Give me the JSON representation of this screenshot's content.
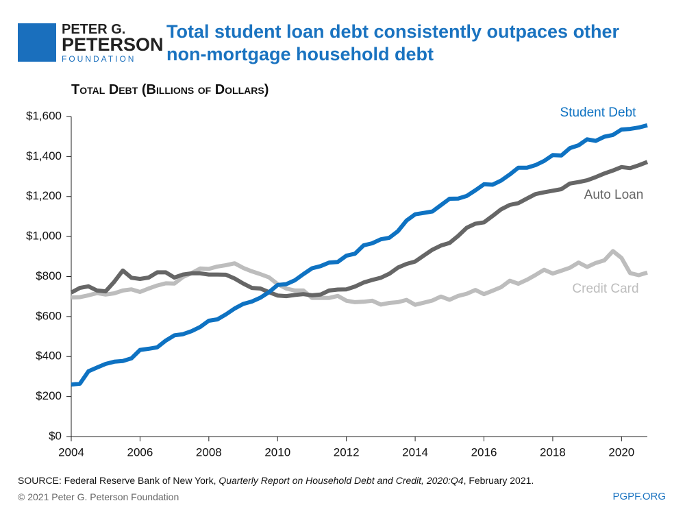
{
  "header": {
    "logo": [
      "PETER G.",
      "PETERSON",
      "FOUNDATION"
    ]
  },
  "chart_data": {
    "type": "line",
    "title": "Total student loan debt consistently outpaces other non-mortgage household debt",
    "y_label": "Total Debt (Billions of Dollars)",
    "x": [
      2004,
      2004.25,
      2004.5,
      2004.75,
      2005,
      2005.25,
      2005.5,
      2005.75,
      2006,
      2006.25,
      2006.5,
      2006.75,
      2007,
      2007.25,
      2007.5,
      2007.75,
      2008,
      2008.25,
      2008.5,
      2008.75,
      2009,
      2009.25,
      2009.5,
      2009.75,
      2010,
      2010.25,
      2010.5,
      2010.75,
      2011,
      2011.25,
      2011.5,
      2011.75,
      2012,
      2012.25,
      2012.5,
      2012.75,
      2013,
      2013.25,
      2013.5,
      2013.75,
      2014,
      2014.25,
      2014.5,
      2014.75,
      2015,
      2015.25,
      2015.5,
      2015.75,
      2016,
      2016.25,
      2016.5,
      2016.75,
      2017,
      2017.25,
      2017.5,
      2017.75,
      2018,
      2018.25,
      2018.5,
      2018.75,
      2019,
      2019.25,
      2019.5,
      2019.75,
      2020,
      2020.25,
      2020.5,
      2020.75
    ],
    "series": [
      {
        "name": "Student Debt",
        "color": "#0e72c2",
        "values": [
          260,
          264,
          326,
          345,
          363,
          374,
          378,
          391,
          433,
          439,
          446,
          480,
          506,
          512,
          527,
          548,
          579,
          586,
          611,
          640,
          663,
          675,
          694,
          722,
          758,
          762,
          781,
          812,
          841,
          852,
          870,
          873,
          904,
          914,
          956,
          966,
          986,
          994,
          1027,
          1080,
          1111,
          1118,
          1125,
          1157,
          1189,
          1190,
          1203,
          1231,
          1261,
          1259,
          1280,
          1310,
          1344,
          1344,
          1357,
          1378,
          1407,
          1405,
          1442,
          1456,
          1486,
          1478,
          1499,
          1508,
          1535,
          1538,
          1545,
          1556
        ]
      },
      {
        "name": "Auto Loan",
        "color": "#666666",
        "values": [
          720,
          743,
          751,
          730,
          726,
          774,
          830,
          794,
          788,
          795,
          821,
          821,
          795,
          810,
          816,
          816,
          810,
          810,
          809,
          790,
          765,
          743,
          740,
          722,
          705,
          702,
          708,
          712,
          706,
          710,
          730,
          735,
          736,
          750,
          770,
          783,
          794,
          814,
          845,
          863,
          875,
          905,
          934,
          955,
          968,
          1003,
          1044,
          1064,
          1071,
          1103,
          1136,
          1158,
          1167,
          1190,
          1212,
          1221,
          1229,
          1237,
          1265,
          1272,
          1281,
          1297,
          1315,
          1330,
          1347,
          1342,
          1356,
          1373
        ]
      },
      {
        "name": "Credit Card",
        "color": "#bdbdbd",
        "values": [
          695,
          697,
          706,
          717,
          710,
          716,
          730,
          736,
          723,
          740,
          755,
          766,
          765,
          798,
          817,
          840,
          838,
          850,
          857,
          866,
          843,
          826,
          812,
          796,
          762,
          740,
          730,
          730,
          693,
          693,
          693,
          703,
          679,
          672,
          674,
          679,
          660,
          668,
          672,
          683,
          659,
          669,
          680,
          700,
          684,
          703,
          714,
          733,
          712,
          729,
          747,
          779,
          764,
          784,
          808,
          834,
          815,
          829,
          844,
          870,
          848,
          868,
          881,
          927,
          893,
          817,
          807,
          820
        ]
      }
    ],
    "xlim": [
      2004,
      2020.75
    ],
    "xticks": [
      2004,
      2006,
      2008,
      2010,
      2012,
      2014,
      2016,
      2018,
      2020
    ],
    "ylim": [
      0,
      1600
    ],
    "yticks": [
      {
        "value": 0,
        "label": "$0"
      },
      {
        "value": 200,
        "label": "$200"
      },
      {
        "value": 400,
        "label": "$400"
      },
      {
        "value": 600,
        "label": "$600"
      },
      {
        "value": 800,
        "label": "$800"
      },
      {
        "value": 1000,
        "label": "$1,000"
      },
      {
        "value": 1200,
        "label": "$1,200"
      },
      {
        "value": 1400,
        "label": "$1,400"
      },
      {
        "value": 1600,
        "label": "$1,600"
      }
    ],
    "grid": false
  },
  "footer": {
    "source": [
      "SOURCE: Federal Reserve Bank of New York, ",
      "Quarterly Report on Household Debt and Credit, 2020:Q4",
      ", February 2021."
    ],
    "copyright": "© 2021 Peter G. Peterson Foundation",
    "site": "PGPF.ORG"
  }
}
